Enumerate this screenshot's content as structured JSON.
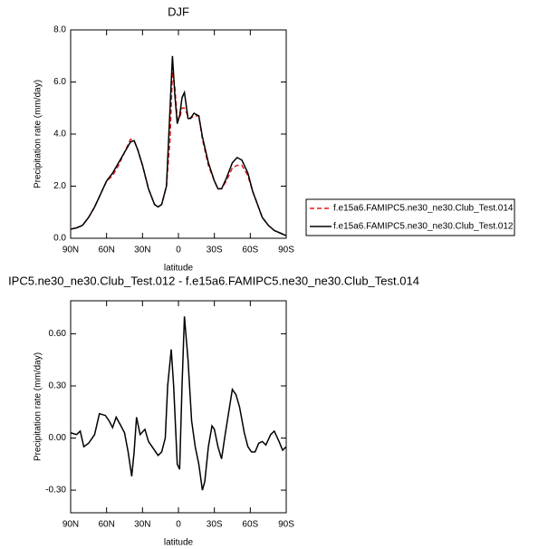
{
  "chart_data": [
    {
      "type": "line",
      "title": "DJF",
      "xlabel": "latitude",
      "ylabel": "Precipitation rate (mm/day)",
      "x": [
        90,
        85,
        80,
        75,
        70,
        65,
        60,
        55,
        50,
        45,
        40,
        37,
        34,
        30,
        25,
        20,
        17,
        14,
        10,
        7,
        5,
        3,
        1,
        -1,
        -3,
        -5,
        -8,
        -10,
        -13,
        -17,
        -20,
        -25,
        -30,
        -33,
        -36,
        -40,
        -45,
        -49,
        -53,
        -58,
        -62,
        -66,
        -70,
        -75,
        -80,
        -85,
        -90
      ],
      "series": [
        {
          "name": "f.e15a6.FAMIPC5.ne30_ne30.Club_Test.014",
          "color": "#e41a1c",
          "dash": true,
          "values": [
            0.35,
            0.4,
            0.5,
            0.8,
            1.2,
            1.7,
            2.2,
            2.4,
            2.8,
            3.3,
            3.8,
            3.75,
            3.4,
            2.8,
            1.9,
            1.3,
            1.2,
            1.3,
            2.0,
            3.8,
            6.4,
            5.8,
            4.6,
            4.6,
            5.0,
            5.0,
            4.7,
            4.6,
            4.7,
            4.7,
            3.8,
            2.8,
            2.2,
            1.9,
            1.9,
            2.2,
            2.7,
            2.8,
            2.8,
            2.4,
            1.8,
            1.3,
            0.8,
            0.5,
            0.3,
            0.2,
            0.1
          ]
        },
        {
          "name": "f.e15a6.FAMIPC5.ne30_ne30.Club_Test.012",
          "color": "#000000",
          "dash": false,
          "values": [
            0.35,
            0.4,
            0.5,
            0.8,
            1.2,
            1.7,
            2.2,
            2.5,
            2.9,
            3.3,
            3.7,
            3.75,
            3.4,
            2.8,
            1.9,
            1.3,
            1.2,
            1.3,
            2.0,
            5.0,
            7.0,
            5.5,
            4.4,
            4.7,
            5.4,
            5.6,
            4.6,
            4.6,
            4.8,
            4.7,
            3.9,
            2.9,
            2.2,
            1.9,
            1.9,
            2.3,
            2.9,
            3.1,
            3.0,
            2.5,
            1.8,
            1.3,
            0.8,
            0.5,
            0.3,
            0.2,
            0.1
          ]
        }
      ],
      "xlim": [
        90,
        -90
      ],
      "xticks": [
        {
          "value": 90,
          "label": "90N"
        },
        {
          "value": 60,
          "label": "60N"
        },
        {
          "value": 30,
          "label": "30N"
        },
        0,
        {
          "value": -30,
          "label": "30S"
        },
        {
          "value": -60,
          "label": "60S"
        },
        {
          "value": -90,
          "label": "90S"
        }
      ],
      "ylim": [
        0,
        8
      ],
      "yticks": [
        {
          "value": 0,
          "label": "0.0"
        },
        {
          "value": 2,
          "label": "2.0"
        },
        {
          "value": 4,
          "label": "4.0"
        },
        {
          "value": 6,
          "label": "6.0"
        },
        {
          "value": 8,
          "label": "8.0"
        }
      ],
      "legend": "right"
    },
    {
      "type": "line",
      "title": "IPC5.ne30_ne30.Club_Test.012 - f.e15a6.FAMIPC5.ne30_ne30.Club_Test.014",
      "xlabel": "latitude",
      "ylabel": "Precipitation rate (mm/day)",
      "x": [
        90,
        85,
        82,
        79,
        75,
        70,
        66,
        61,
        58,
        55,
        52,
        48,
        45,
        42,
        39,
        37,
        35,
        32,
        28,
        25,
        22,
        17,
        14,
        11,
        9,
        6,
        4,
        1,
        -1,
        -3,
        -5,
        -8,
        -11,
        -14,
        -17,
        -20,
        -22,
        -25,
        -28,
        -30,
        -33,
        -36,
        -39,
        -42,
        -45,
        -48,
        -51,
        -55,
        -58,
        -61,
        -64,
        -67,
        -70,
        -73,
        -77,
        -80,
        -84,
        -87,
        -90
      ],
      "color": "#000000",
      "values": [
        0.03,
        0.02,
        0.04,
        -0.05,
        -0.03,
        0.02,
        0.14,
        0.13,
        0.1,
        0.06,
        0.12,
        0.07,
        0.03,
        -0.08,
        -0.22,
        -0.08,
        0.12,
        0.02,
        0.05,
        -0.02,
        -0.05,
        -0.1,
        -0.08,
        0.0,
        0.3,
        0.51,
        0.3,
        -0.15,
        -0.18,
        0.3,
        0.7,
        0.45,
        0.1,
        -0.05,
        -0.15,
        -0.3,
        -0.25,
        -0.05,
        0.07,
        0.05,
        -0.05,
        -0.12,
        0.02,
        0.15,
        0.28,
        0.25,
        0.18,
        0.03,
        -0.05,
        -0.08,
        -0.08,
        -0.03,
        -0.02,
        -0.04,
        0.02,
        0.04,
        -0.02,
        -0.07,
        -0.05
      ],
      "xlim": [
        90,
        -90
      ],
      "xticks": [
        {
          "value": 90,
          "label": "90N"
        },
        {
          "value": 60,
          "label": "60N"
        },
        {
          "value": 30,
          "label": "30N"
        },
        0,
        {
          "value": -30,
          "label": "30S"
        },
        {
          "value": -60,
          "label": "60S"
        },
        {
          "value": -90,
          "label": "90S"
        }
      ],
      "ylim": [
        -0.43,
        0.79
      ],
      "yticks": [
        {
          "value": -0.3,
          "label": "-0.30"
        },
        {
          "value": 0,
          "label": "0.00"
        },
        {
          "value": 0.3,
          "label": "0.30"
        },
        {
          "value": 0.6,
          "label": "0.60"
        }
      ]
    }
  ]
}
